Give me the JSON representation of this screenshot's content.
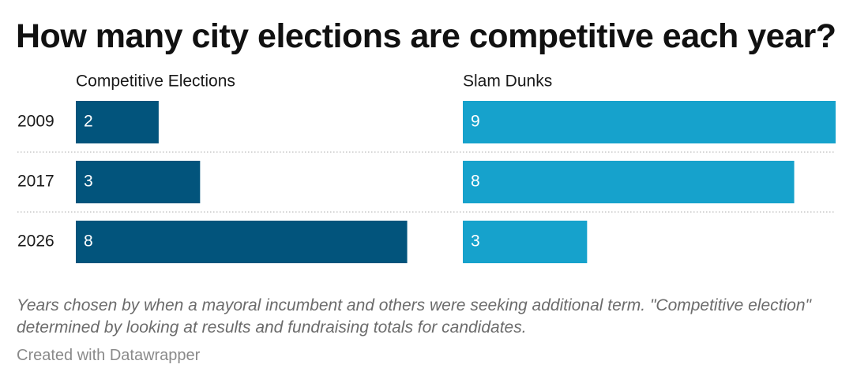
{
  "title": "How many city elections are competitive each year?",
  "chart_data": {
    "type": "bar",
    "orientation": "horizontal",
    "categories": [
      "2009",
      "2017",
      "2026"
    ],
    "series": [
      {
        "name": "Competitive Elections",
        "values": [
          2,
          3,
          8
        ],
        "color": "#02547c"
      },
      {
        "name": "Slam Dunks",
        "values": [
          9,
          8,
          3
        ],
        "color": "#16a2cc"
      }
    ],
    "xlim": [
      0,
      9
    ],
    "grid": false,
    "data_labels": true
  },
  "notes": "Years chosen by when a mayoral incumbent and others were seeking additional term. \"Competitive election\" determined by looking at results and fundraising totals for candidates.",
  "credit": "Created with Datawrapper"
}
